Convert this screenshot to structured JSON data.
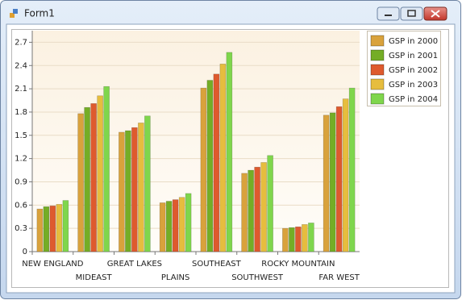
{
  "window": {
    "title": "Form1"
  },
  "chart_data": {
    "type": "bar",
    "categories": [
      "NEW ENGLAND",
      "MIDEAST",
      "GREAT LAKES",
      "PLAINS",
      "SOUTHEAST",
      "SOUTHWEST",
      "ROCKY MOUNTAIN",
      "FAR WEST"
    ],
    "series": [
      {
        "name": "GSP in 2000",
        "color": "#d9a23c",
        "values": [
          0.55,
          1.78,
          1.54,
          0.63,
          2.11,
          1.01,
          0.3,
          1.76
        ]
      },
      {
        "name": "GSP in 2001",
        "color": "#74ad26",
        "values": [
          0.58,
          1.86,
          1.56,
          0.65,
          2.21,
          1.05,
          0.31,
          1.79
        ]
      },
      {
        "name": "GSP in 2002",
        "color": "#de5a2e",
        "values": [
          0.59,
          1.91,
          1.6,
          0.67,
          2.29,
          1.09,
          0.32,
          1.87
        ]
      },
      {
        "name": "GSP in 2003",
        "color": "#e6bd3e",
        "values": [
          0.61,
          2.01,
          1.66,
          0.7,
          2.42,
          1.15,
          0.35,
          1.97
        ]
      },
      {
        "name": "GSP in 2004",
        "color": "#7fd64c",
        "values": [
          0.66,
          2.13,
          1.75,
          0.75,
          2.57,
          1.24,
          0.37,
          2.11
        ]
      }
    ],
    "ylim": [
      0,
      2.85
    ],
    "yticks": [
      0,
      0.3,
      0.6,
      0.9,
      1.2,
      1.5,
      1.8,
      2.1,
      2.4,
      2.7
    ],
    "grid": true
  }
}
